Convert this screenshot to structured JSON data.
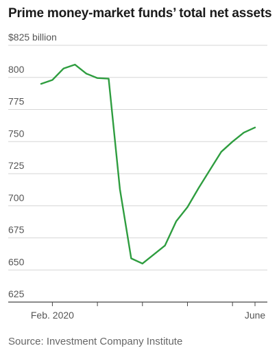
{
  "title": "Prime money-market funds’ total net assets",
  "source": "Source: Investment Company Institute",
  "colors": {
    "line": "#2e9d3f",
    "grid": "#d6d6d6",
    "axis": "#444444",
    "text": "#555555"
  },
  "chart_data": {
    "type": "line",
    "title": "Prime money-market funds’ total net assets",
    "ylim": [
      625,
      825
    ],
    "y_ticks": [
      825,
      800,
      775,
      750,
      725,
      700,
      675,
      650,
      625
    ],
    "y_tick_labels": [
      "$825 billion",
      "800",
      "775",
      "750",
      "725",
      "700",
      "675",
      "650",
      "625"
    ],
    "x_range": [
      "2020-01-22",
      "2020-06-04"
    ],
    "x_ticks": [
      "2020-01-29",
      "2020-02-26",
      "2020-03-25",
      "2020-04-22",
      "2020-05-20",
      "2020-06-03"
    ],
    "x_tick_labels": [
      "Feb. 2020",
      "",
      "",
      "",
      "",
      "June"
    ],
    "grid": true,
    "series": [
      {
        "x": [
          "2020-01-22",
          "2020-01-29",
          "2020-02-05",
          "2020-02-12",
          "2020-02-19",
          "2020-02-26",
          "2020-03-04",
          "2020-03-11",
          "2020-03-18",
          "2020-03-25",
          "2020-04-01",
          "2020-04-08",
          "2020-04-15",
          "2020-04-22",
          "2020-04-29",
          "2020-05-06",
          "2020-05-13",
          "2020-05-20",
          "2020-05-27",
          "2020-06-03"
        ],
        "values": [
          795,
          798,
          807,
          810,
          803,
          799.5,
          799,
          713,
          659,
          655,
          662,
          669,
          688,
          699,
          714,
          728,
          742,
          750,
          757,
          761
        ]
      }
    ]
  }
}
